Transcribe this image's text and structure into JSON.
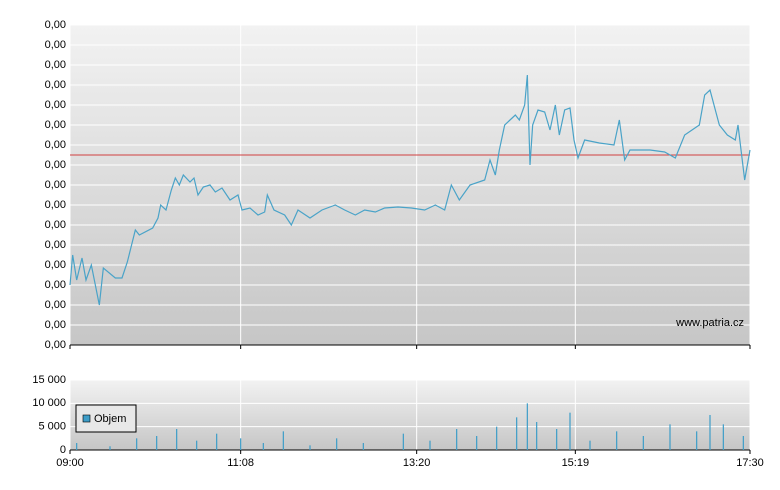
{
  "chart_data": [
    {
      "type": "line",
      "annotation": "www.patria.cz",
      "color": "#4aa3c8",
      "grid": true,
      "xlim": [
        "09:00",
        "17:30"
      ],
      "ylim": [
        0,
        0.0016
      ],
      "yticks": [
        {
          "value": 0,
          "label": "0,00"
        },
        {
          "value": 0.0001,
          "label": "0,00"
        },
        {
          "value": 0.0002,
          "label": "0,00"
        },
        {
          "value": 0.0003,
          "label": "0,00"
        },
        {
          "value": 0.0004,
          "label": "0,00"
        },
        {
          "value": 0.0005,
          "label": "0,00"
        },
        {
          "value": 0.0006,
          "label": "0,00"
        },
        {
          "value": 0.0007,
          "label": "0,00"
        },
        {
          "value": 0.0008,
          "label": "0,00"
        },
        {
          "value": 0.0009,
          "label": "0,00"
        },
        {
          "value": 0.001,
          "label": "0,00"
        },
        {
          "value": 0.0011,
          "label": "0,00"
        },
        {
          "value": 0.0012,
          "label": "0,00"
        },
        {
          "value": 0.0013,
          "label": "0,00"
        },
        {
          "value": 0.0014,
          "label": "0,00"
        },
        {
          "value": 0.0015,
          "label": "0,00"
        },
        {
          "value": 0.0016,
          "label": "0,00"
        }
      ],
      "reference_line": {
        "value": 0.00095,
        "color": "#d04040"
      },
      "x": [
        "09:00",
        "09:02",
        "09:05",
        "09:09",
        "09:12",
        "09:16",
        "09:22",
        "09:25",
        "09:34",
        "09:39",
        "09:43",
        "09:49",
        "09:52",
        "10:02",
        "10:06",
        "10:08",
        "10:12",
        "10:16",
        "10:19",
        "10:22",
        "10:25",
        "10:30",
        "10:33",
        "10:36",
        "10:40",
        "10:45",
        "10:49",
        "10:54",
        "11:00",
        "11:06",
        "11:09",
        "11:15",
        "11:21",
        "11:26",
        "11:28",
        "11:33",
        "11:41",
        "11:46",
        "11:51",
        "12:00",
        "12:09",
        "12:19",
        "12:26",
        "12:34",
        "12:41",
        "12:49",
        "12:56",
        "13:06",
        "13:16",
        "13:26",
        "13:34",
        "13:41",
        "13:46",
        "13:52",
        "14:00",
        "14:11",
        "14:15",
        "14:19",
        "14:22",
        "14:26",
        "14:30",
        "14:34",
        "14:37",
        "14:41",
        "14:43",
        "14:45",
        "14:47",
        "14:51",
        "14:56",
        "15:00",
        "15:04",
        "15:07",
        "15:11",
        "15:15",
        "15:18",
        "15:21",
        "15:26",
        "15:37",
        "15:48",
        "15:52",
        "15:56",
        "16:00",
        "16:15",
        "16:26",
        "16:34",
        "16:41",
        "16:52",
        "16:56",
        "17:00",
        "17:04",
        "17:07",
        "17:13",
        "17:19",
        "17:21",
        "17:26",
        "17:30"
      ],
      "values": [
        0.0003,
        0.00045,
        0.000325,
        0.000435,
        0.000325,
        0.0004,
        0.0002,
        0.000385,
        0.000335,
        0.000335,
        0.000415,
        0.000575,
        0.00055,
        0.000585,
        0.000635,
        0.0007,
        0.000675,
        0.000775,
        0.000835,
        0.0008,
        0.00085,
        0.000815,
        0.000835,
        0.00075,
        0.00079,
        0.0008,
        0.000765,
        0.000785,
        0.000725,
        0.00075,
        0.000675,
        0.000685,
        0.00065,
        0.000665,
        0.00075,
        0.000675,
        0.00065,
        0.0006,
        0.000675,
        0.000635,
        0.000675,
        0.0007,
        0.000675,
        0.00065,
        0.000675,
        0.000665,
        0.000685,
        0.00069,
        0.000685,
        0.000675,
        0.0007,
        0.000675,
        0.0008,
        0.000725,
        0.0008,
        0.000825,
        0.000925,
        0.00085,
        0.000975,
        0.0011,
        0.001125,
        0.00115,
        0.001125,
        0.0012,
        0.00135,
        0.0009,
        0.0011,
        0.001175,
        0.001165,
        0.001075,
        0.0012,
        0.00105,
        0.001175,
        0.001185,
        0.001025,
        0.000935,
        0.001025,
        0.00101,
        0.001,
        0.001125,
        0.000925,
        0.000975,
        0.000975,
        0.000965,
        0.000935,
        0.00105,
        0.0011,
        0.00125,
        0.001275,
        0.001175,
        0.0011,
        0.00105,
        0.001025,
        0.0011,
        0.000825,
        0.000975
      ]
    },
    {
      "type": "bar",
      "grid": true,
      "legend": "upper left",
      "xlim": [
        "09:00",
        "17:30"
      ],
      "xticks": [
        "09:00",
        "11:08",
        "13:20",
        "15:19",
        "17:30"
      ],
      "ylim": [
        0,
        15000
      ],
      "yticks": [
        0,
        {
          "value": 5000,
          "label": "5 000"
        },
        {
          "value": 10000,
          "label": "10 000"
        },
        {
          "value": 15000,
          "label": "15 000"
        }
      ],
      "x": [
        "09:05",
        "09:30",
        "09:50",
        "10:05",
        "10:20",
        "10:35",
        "10:50",
        "11:08",
        "11:25",
        "11:40",
        "12:00",
        "12:20",
        "12:40",
        "13:10",
        "13:30",
        "13:50",
        "14:05",
        "14:20",
        "14:35",
        "14:43",
        "14:50",
        "15:05",
        "15:15",
        "15:30",
        "15:50",
        "16:10",
        "16:30",
        "16:50",
        "17:00",
        "17:10",
        "17:25"
      ],
      "series": [
        {
          "name": "Objem",
          "color": "#3d9dc8",
          "values": [
            1500,
            800,
            2500,
            3000,
            4500,
            2000,
            3500,
            2500,
            1500,
            4000,
            1000,
            2500,
            1500,
            3500,
            2000,
            4500,
            3000,
            5000,
            7000,
            10000,
            6000,
            4500,
            8000,
            2000,
            4000,
            3000,
            5500,
            4000,
            7500,
            5500,
            3000
          ]
        }
      ]
    }
  ]
}
